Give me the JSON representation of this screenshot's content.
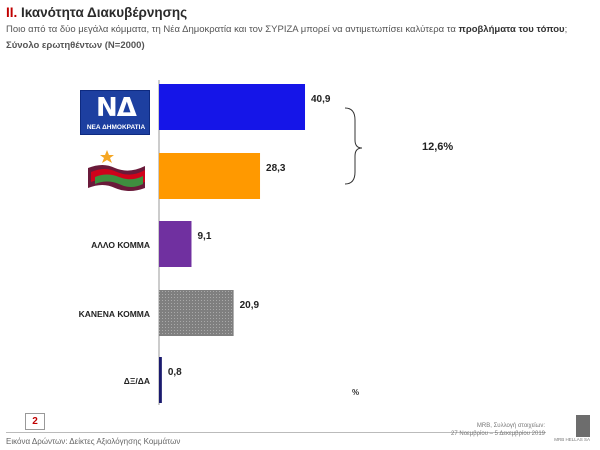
{
  "header": {
    "roman": "II.",
    "title": "Ικανότητα Διακυβέρνησης",
    "question_prefix": "Ποιο από τα δύο μεγάλα κόμματα, τη Νέα Δημοκρατία και τον ΣΥΡΙΖΑ μπορεί να αντιμετωπίσει καλύτερα  τα ",
    "question_emphasis": "προβλήματα του τόπου",
    "question_suffix": ";",
    "basis": "Σύνολο ερωτηθέντων (N=2000)"
  },
  "logos": {
    "nd_letters": "ΝΔ",
    "nd_text": "ΝΕΑ ΔΗΜΟΚΡΑΤΙΑ"
  },
  "chart_data": {
    "type": "bar",
    "orientation": "horizontal",
    "categories": [
      "ΝΕΑ ΔΗΜΟΚΡΑΤΙΑ",
      "ΣΥΡΙΖΑ",
      "ΑΛΛΟ ΚΟΜΜΑ",
      "ΚΑΝΕΝΑ ΚΟΜΜΑ",
      "ΔΞ/ΔΑ"
    ],
    "category_labels_shown": [
      "",
      "",
      "ΑΛΛΟ ΚΟΜΜΑ",
      "ΚΑΝΕΝΑ ΚΟΜΜΑ",
      "ΔΞ/ΔΑ"
    ],
    "values": [
      40.9,
      28.3,
      9.1,
      20.9,
      0.8
    ],
    "value_labels": [
      "40,9",
      "28,3",
      "9,1",
      "20,9",
      "0,8"
    ],
    "colors": [
      "#1515e8",
      "#ff9900",
      "#7030a0",
      "#808080",
      "#1a1a6e"
    ],
    "xlim": [
      0,
      50
    ],
    "difference_label": "12,6%",
    "unit": "%",
    "grid": false
  },
  "footer": {
    "page": "2",
    "left": "Εικόνα Δρώντων: Δείκτες Αξιολόγησης  Κομμάτων",
    "right_line1": "MRB, Συλλογή στοιχείων:",
    "right_line2": "27 Νοεμβρίου – 5 Δεκεμβρίου 2019",
    "brand": "MRB HELLAS SA"
  }
}
